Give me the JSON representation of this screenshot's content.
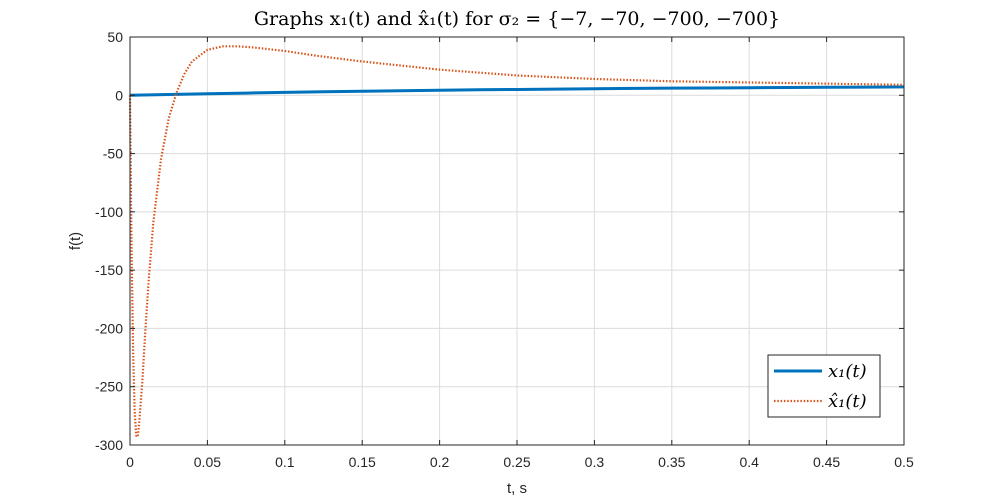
{
  "chart_data": {
    "type": "line",
    "title": "Graphs x₁(t) and x̂₁(t) for σ₂ = {−7, −70, −700, −700}",
    "xlabel": "t, s",
    "ylabel": "f(t)",
    "xlim": [
      0,
      0.5
    ],
    "ylim": [
      -300,
      50
    ],
    "xticks": [
      0,
      0.05,
      0.1,
      0.15,
      0.2,
      0.25,
      0.3,
      0.35,
      0.4,
      0.45,
      0.5
    ],
    "xtick_labels": [
      "0",
      "0.05",
      "0.1",
      "0.15",
      "0.2",
      "0.25",
      "0.3",
      "0.35",
      "0.4",
      "0.45",
      "0.5"
    ],
    "yticks": [
      50,
      0,
      -50,
      -100,
      -150,
      -200,
      -250,
      -300
    ],
    "ytick_labels": [
      "50",
      "0",
      "-50",
      "-100",
      "-150",
      "-200",
      "-250",
      "-300"
    ],
    "grid": true,
    "legend_position": "bottom-right",
    "series": [
      {
        "name": "x₁(t)",
        "color": "#0072BD",
        "style": "solid",
        "x": [
          0,
          0.025,
          0.05,
          0.075,
          0.1,
          0.125,
          0.15,
          0.175,
          0.2,
          0.225,
          0.25,
          0.275,
          0.3,
          0.325,
          0.35,
          0.375,
          0.4,
          0.425,
          0.45,
          0.475,
          0.5
        ],
        "y": [
          0,
          0.7,
          1.3,
          1.9,
          2.5,
          3.0,
          3.5,
          3.9,
          4.3,
          4.7,
          5.0,
          5.3,
          5.6,
          5.9,
          6.1,
          6.3,
          6.5,
          6.7,
          6.9,
          7.0,
          7.2
        ]
      },
      {
        "name": "x̂₁(t)",
        "color": "#D95319",
        "style": "dotted",
        "x": [
          0,
          0.001,
          0.002,
          0.003,
          0.004,
          0.005,
          0.006,
          0.008,
          0.01,
          0.012,
          0.015,
          0.02,
          0.025,
          0.03,
          0.035,
          0.04,
          0.05,
          0.06,
          0.07,
          0.08,
          0.1,
          0.12,
          0.15,
          0.2,
          0.25,
          0.3,
          0.35,
          0.4,
          0.45,
          0.5
        ],
        "y": [
          0,
          -130,
          -220,
          -270,
          -292,
          -293,
          -280,
          -245,
          -200,
          -160,
          -110,
          -55,
          -20,
          2,
          18,
          29,
          39,
          42,
          42,
          41,
          38,
          34,
          29,
          22,
          17,
          14,
          12,
          11,
          10,
          9
        ]
      }
    ]
  }
}
